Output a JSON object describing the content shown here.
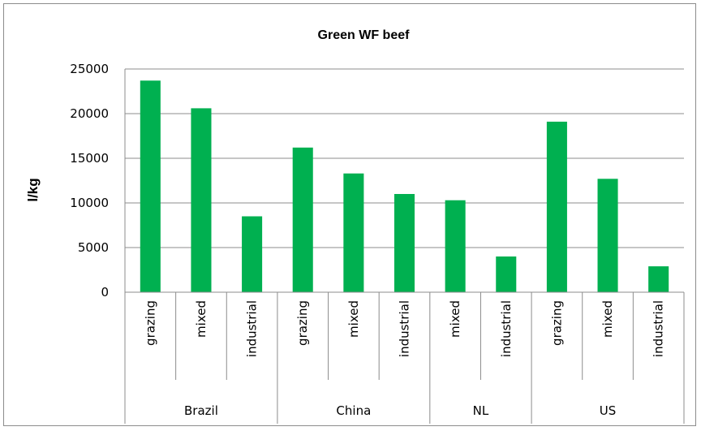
{
  "chart_data": {
    "type": "bar",
    "title": "Green WF beef",
    "ylabel": "l/kg",
    "xlabel": "",
    "ylim": [
      0,
      25000
    ],
    "yticks": [
      0,
      5000,
      10000,
      15000,
      20000,
      25000
    ],
    "grid": "horizontal",
    "bar_color": "#00b050",
    "groups": [
      {
        "name": "Brazil",
        "categories": [
          "grazing",
          "mixed",
          "industrial"
        ],
        "values": [
          23700,
          20600,
          8500
        ]
      },
      {
        "name": "China",
        "categories": [
          "grazing",
          "mixed",
          "industrial"
        ],
        "values": [
          16200,
          13300,
          11000
        ]
      },
      {
        "name": "NL",
        "categories": [
          "mixed",
          "industrial"
        ],
        "values": [
          10300,
          4000
        ]
      },
      {
        "name": "US",
        "categories": [
          "grazing",
          "mixed",
          "industrial"
        ],
        "values": [
          19100,
          12700,
          2900
        ]
      }
    ]
  }
}
